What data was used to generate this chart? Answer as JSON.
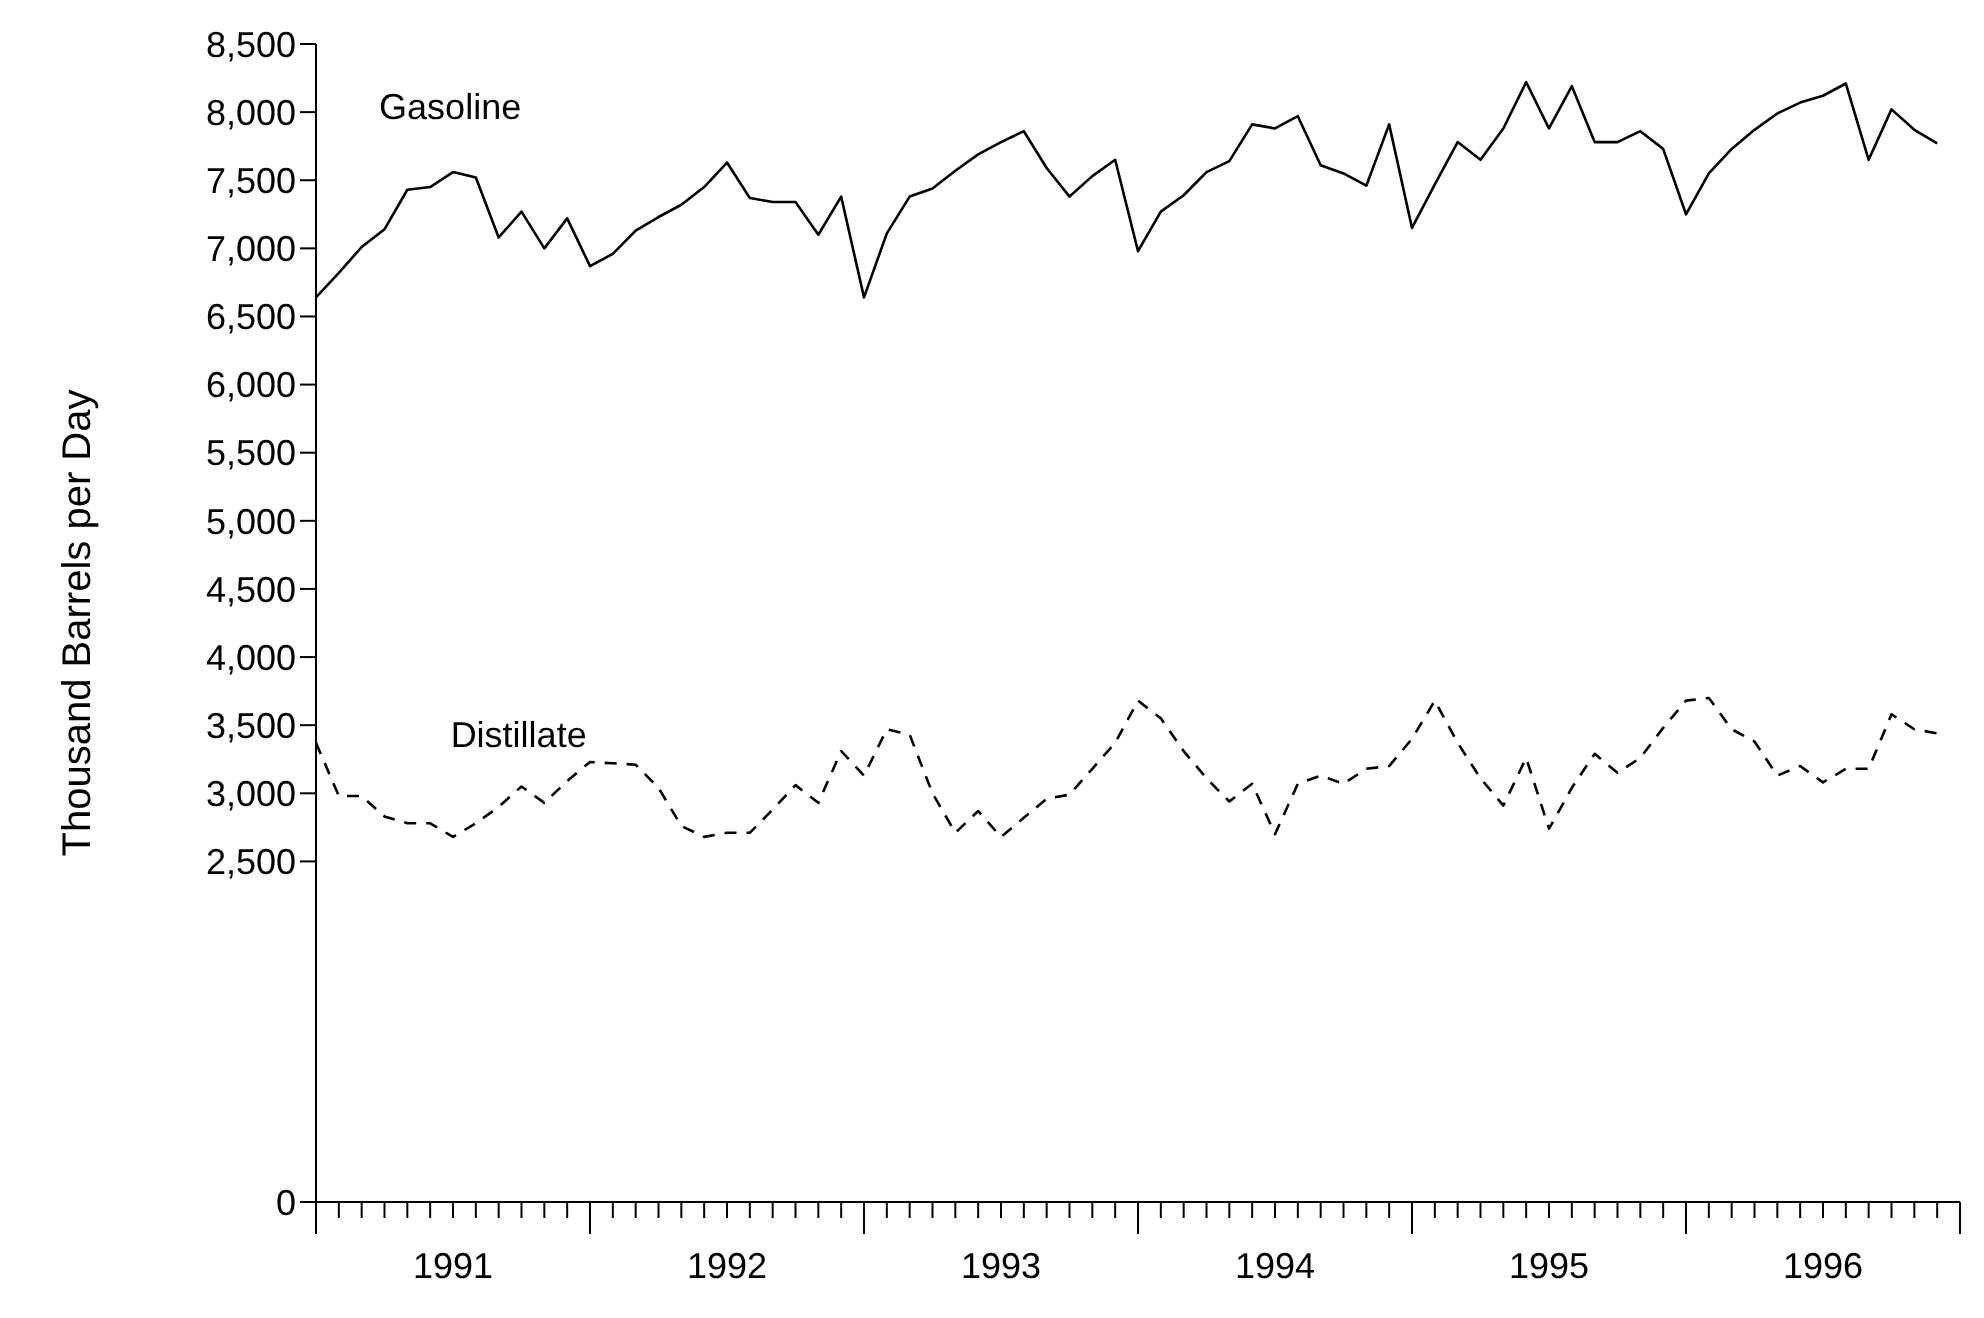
{
  "chart_data": {
    "type": "line",
    "ylabel": "Thousand Barrels per Day",
    "marker": "none",
    "tick_labels": "xy",
    "x": [
      "1991-01",
      "1991-02",
      "1991-03",
      "1991-04",
      "1991-05",
      "1991-06",
      "1991-07",
      "1991-08",
      "1991-09",
      "1991-10",
      "1991-11",
      "1991-12",
      "1992-01",
      "1992-02",
      "1992-03",
      "1992-04",
      "1992-05",
      "1992-06",
      "1992-07",
      "1992-08",
      "1992-09",
      "1992-10",
      "1992-11",
      "1992-12",
      "1993-01",
      "1993-02",
      "1993-03",
      "1993-04",
      "1993-05",
      "1993-06",
      "1993-07",
      "1993-08",
      "1993-09",
      "1993-10",
      "1993-11",
      "1993-12",
      "1994-01",
      "1994-02",
      "1994-03",
      "1994-04",
      "1994-05",
      "1994-06",
      "1994-07",
      "1994-08",
      "1994-09",
      "1994-10",
      "1994-11",
      "1994-12",
      "1995-01",
      "1995-02",
      "1995-03",
      "1995-04",
      "1995-05",
      "1995-06",
      "1995-07",
      "1995-08",
      "1995-09",
      "1995-10",
      "1995-11",
      "1995-12",
      "1996-01",
      "1996-02",
      "1996-03",
      "1996-04",
      "1996-05",
      "1996-06",
      "1996-07",
      "1996-08",
      "1996-09",
      "1996-10",
      "1996-11",
      "1996-12"
    ],
    "xlim": [
      "1991-01",
      "1997-01"
    ],
    "xticks": [
      {
        "value": "1991-07",
        "label": "1991"
      },
      {
        "value": "1992-07",
        "label": "1992"
      },
      {
        "value": "1993-07",
        "label": "1993"
      },
      {
        "value": "1994-07",
        "label": "1994"
      },
      {
        "value": "1995-07",
        "label": "1995"
      },
      {
        "value": "1996-07",
        "label": "1996"
      }
    ],
    "ylim": [
      0,
      8500
    ],
    "yticks": [
      {
        "value": 0,
        "label": "0"
      },
      {
        "value": 2500,
        "label": "2,500"
      },
      {
        "value": 3000,
        "label": "3,000"
      },
      {
        "value": 3500,
        "label": "3,500"
      },
      {
        "value": 4000,
        "label": "4,000"
      },
      {
        "value": 4500,
        "label": "4,500"
      },
      {
        "value": 5000,
        "label": "5,000"
      },
      {
        "value": 5500,
        "label": "5,500"
      },
      {
        "value": 6000,
        "label": "6,000"
      },
      {
        "value": 6500,
        "label": "6,500"
      },
      {
        "value": 7000,
        "label": "7,000"
      },
      {
        "value": 7500,
        "label": "7,500"
      },
      {
        "value": 8000,
        "label": "8,000"
      },
      {
        "value": 8500,
        "label": "8,500"
      }
    ],
    "series": [
      {
        "name": "Gasoline",
        "color": "#000000",
        "line_style": "solid",
        "values": [
          6640,
          6820,
          7010,
          7140,
          7430,
          7450,
          7560,
          7520,
          7080,
          7270,
          7000,
          7220,
          6870,
          6960,
          7130,
          7230,
          7320,
          7450,
          7630,
          7370,
          7340,
          7340,
          7100,
          7380,
          6640,
          7110,
          7380,
          7440,
          7570,
          7690,
          7780,
          7860,
          7590,
          7380,
          7530,
          7650,
          6980,
          7270,
          7390,
          7560,
          7640,
          7910,
          7880,
          7970,
          7610,
          7550,
          7460,
          7910,
          7150,
          7470,
          7780,
          7650,
          7880,
          8220,
          7880,
          8190,
          7780,
          7780,
          7860,
          7730,
          7250,
          7550,
          7730,
          7870,
          7990,
          8070,
          8120,
          8210,
          7650,
          8020,
          7870,
          7770
        ]
      },
      {
        "name": "Distillate",
        "color": "#000000",
        "line_style": "dashed",
        "values": [
          3370,
          2980,
          2980,
          2830,
          2780,
          2780,
          2680,
          2780,
          2900,
          3050,
          2930,
          3090,
          3230,
          3220,
          3210,
          3040,
          2760,
          2680,
          2710,
          2710,
          2880,
          3060,
          2930,
          3310,
          3130,
          3470,
          3430,
          3000,
          2710,
          2870,
          2680,
          2820,
          2960,
          2990,
          3180,
          3370,
          3680,
          3550,
          3310,
          3110,
          2940,
          3070,
          2700,
          3070,
          3130,
          3070,
          3180,
          3200,
          3400,
          3680,
          3370,
          3110,
          2910,
          3260,
          2740,
          3040,
          3290,
          3150,
          3260,
          3480,
          3680,
          3700,
          3470,
          3380,
          3130,
          3200,
          3080,
          3180,
          3180,
          3580,
          3470,
          3440
        ]
      }
    ]
  }
}
